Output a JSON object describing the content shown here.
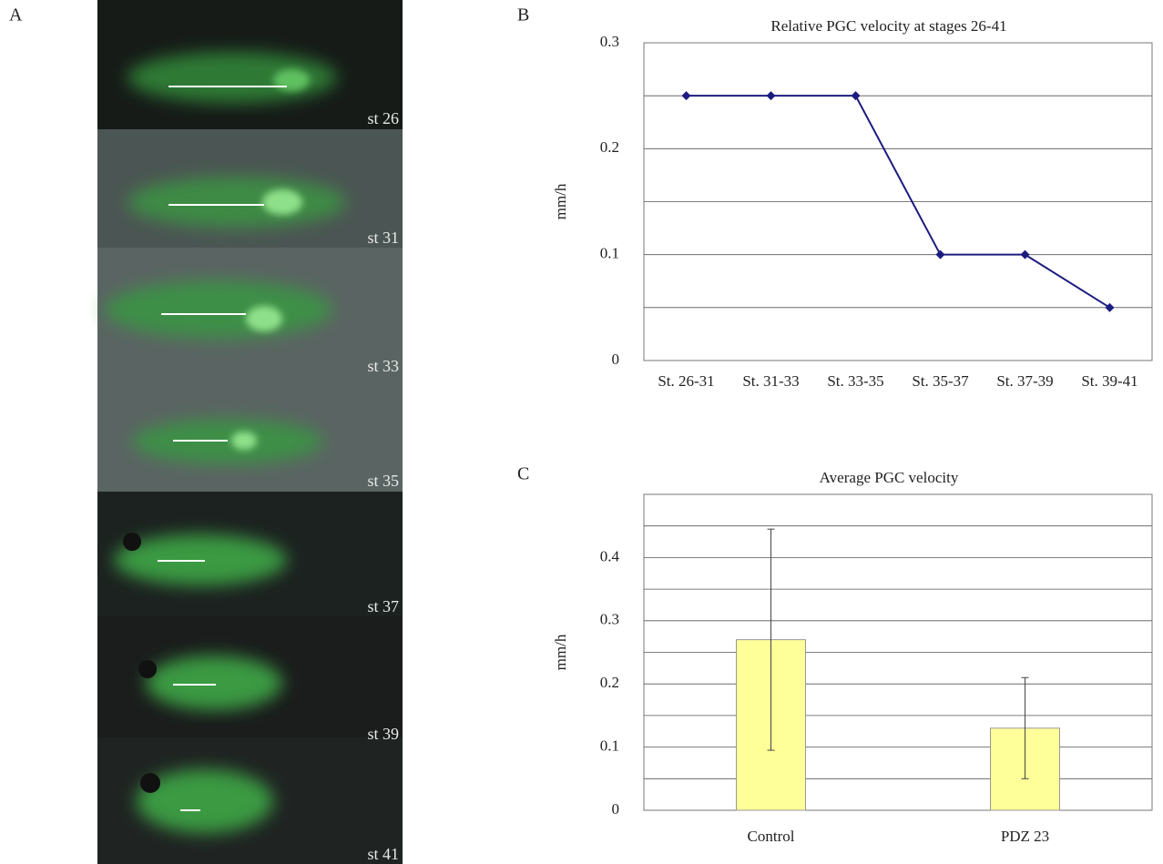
{
  "panels": {
    "a": "A",
    "b": "B",
    "c": "C"
  },
  "images": [
    {
      "label": "st 26"
    },
    {
      "label": "st 31"
    },
    {
      "label": "st 33"
    },
    {
      "label": "st 35"
    },
    {
      "label": "st 37"
    },
    {
      "label": "st 39"
    },
    {
      "label": "st 41"
    }
  ],
  "chart_data": [
    {
      "type": "line",
      "title": "Relative PGC velocity at stages 26-41",
      "ylabel": "mm/h",
      "categories": [
        "St. 26-31",
        "St. 31-33",
        "St. 33-35",
        "St. 35-37",
        "St. 37-39",
        "St. 39-41"
      ],
      "series": [
        {
          "color": "#1c1c80",
          "values": [
            0.25,
            0.25,
            0.25,
            0.1,
            0.1,
            0.05
          ]
        }
      ],
      "ylim": [
        0,
        0.3
      ],
      "yticks": [
        0,
        0.1,
        0.2,
        0.3
      ],
      "grid_lines": [
        0.05,
        0.1,
        0.15,
        0.2,
        0.25,
        0.3
      ]
    },
    {
      "type": "bar",
      "title": "Average PGC velocity",
      "ylabel": "mm/h",
      "categories": [
        "Control",
        "PDZ 23"
      ],
      "values": [
        0.27,
        0.13
      ],
      "errors": [
        0.175,
        0.08
      ],
      "color": "#ffff99",
      "ylim": [
        0,
        0.5
      ],
      "yticks": [
        0,
        0.1,
        0.2,
        0.3,
        0.4
      ],
      "grid_lines": [
        0.05,
        0.1,
        0.15,
        0.2,
        0.25,
        0.3,
        0.35,
        0.4,
        0.45,
        0.5
      ]
    }
  ]
}
